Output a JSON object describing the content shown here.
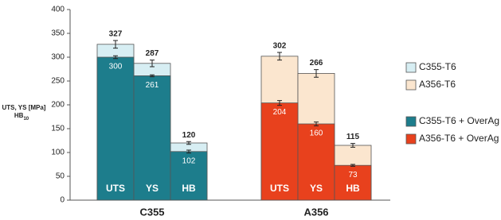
{
  "chart_data": {
    "type": "bar",
    "ylabel": "UTS, YS [MPa]",
    "ylabel2": "HB",
    "ylabel2_sub": "10",
    "groups": [
      "C355",
      "A356"
    ],
    "categories": [
      "UTS",
      "YS",
      "HB",
      "UTS",
      "YS",
      "HB"
    ],
    "series": [
      {
        "name": "C355-T6",
        "color": "#d7eef3",
        "values": [
          327,
          287,
          120,
          null,
          null,
          null
        ],
        "errors": [
          8,
          7,
          3,
          null,
          null,
          null
        ]
      },
      {
        "name": "A356-T6",
        "color": "#fbe6cf",
        "values": [
          null,
          null,
          null,
          302,
          266,
          115
        ],
        "errors": [
          null,
          null,
          null,
          8,
          8,
          4
        ]
      },
      {
        "name": "C355-T6 + OverAg",
        "color": "#1d7d8c",
        "values": [
          300,
          261,
          102,
          null,
          null,
          null
        ],
        "errors": [
          3,
          2,
          3,
          null,
          null,
          null
        ]
      },
      {
        "name": "A356-T6 + OverAg",
        "color": "#e8411d",
        "values": [
          null,
          null,
          null,
          204,
          160,
          73
        ],
        "errors": [
          null,
          null,
          null,
          5,
          4,
          2
        ]
      }
    ],
    "ylim": [
      0,
      400
    ],
    "yticks": [
      0,
      50,
      100,
      150,
      200,
      250,
      300,
      350,
      400
    ],
    "grid": false
  }
}
